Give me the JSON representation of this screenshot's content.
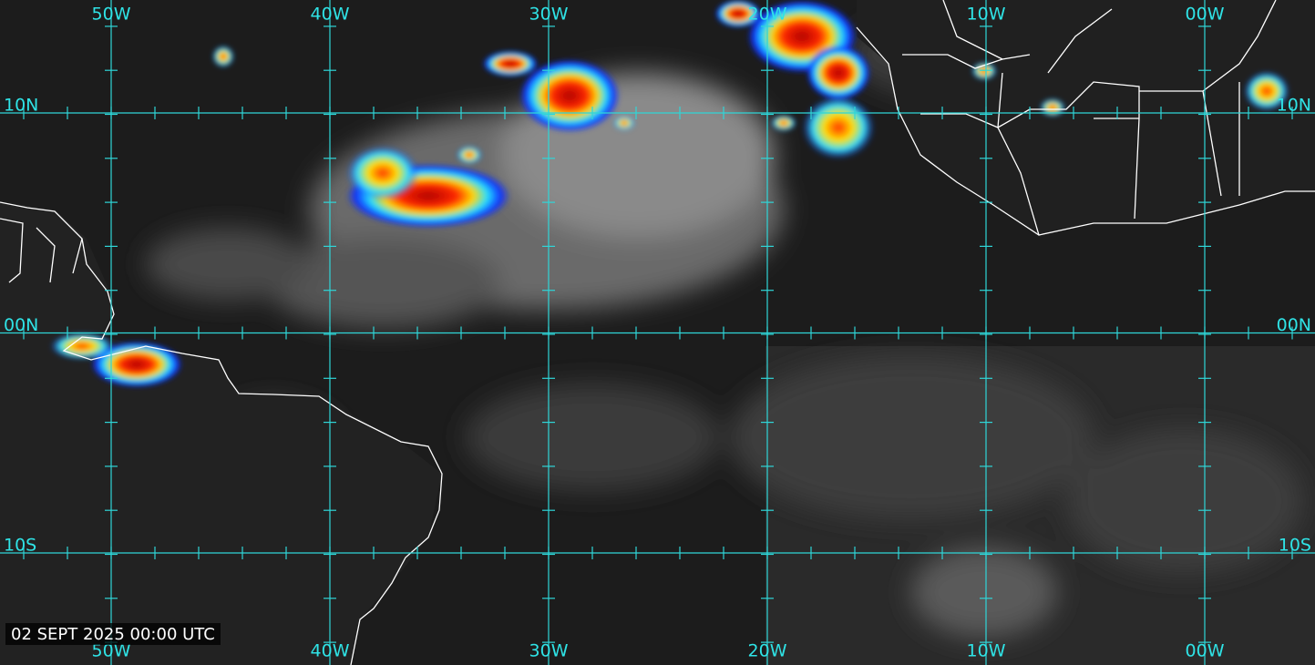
{
  "map": {
    "longitude_labels_top": [
      "50W",
      "40W",
      "30W",
      "20W",
      "10W",
      "00W"
    ],
    "longitude_labels_bottom": [
      "50W",
      "40W",
      "30W",
      "20W",
      "10W",
      "00W"
    ],
    "latitude_labels": [
      "10N",
      "00N",
      "10S"
    ],
    "timestamp": "02 SEPT 2025 00:00 UTC"
  }
}
